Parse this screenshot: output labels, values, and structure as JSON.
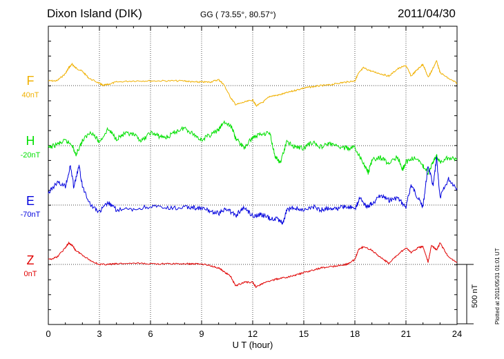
{
  "header": {
    "station": "Dixon Island (DIK)",
    "coords": "GG ( 73.55°,  80.57°)",
    "date": "2011/04/30"
  },
  "footer_note": "Plotted at 2011/05/31 01:01 UT",
  "scale_bar_label": "500 nT",
  "colors": {
    "F": "#f0b000",
    "H": "#00e000",
    "E": "#0000dd",
    "Z": "#e00000",
    "grid": "#000000"
  },
  "chart_data": {
    "type": "line",
    "xlabel": "U T (hour)",
    "xlim": [
      0,
      24
    ],
    "xticks": [
      0,
      3,
      6,
      9,
      12,
      15,
      18,
      21,
      24
    ],
    "series": [
      {
        "name": "F",
        "offset_label": "40nT",
        "x": [
          0,
          0.5,
          1,
          1.2,
          1.4,
          1.6,
          2,
          2.4,
          3,
          3.2,
          3.5,
          4,
          5,
          6,
          7,
          8,
          8.5,
          9,
          9.5,
          10,
          10.3,
          10.7,
          11,
          11.5,
          12,
          12.2,
          12.6,
          13,
          13.5,
          14,
          14.5,
          15,
          15.5,
          16,
          16.5,
          17,
          17.5,
          18,
          18.2,
          18.5,
          19,
          19.5,
          20,
          20.5,
          21,
          21.3,
          21.7,
          22,
          22.3,
          22.5,
          22.8,
          23,
          23.5,
          24
        ],
        "y": [
          40,
          40,
          100,
          150,
          180,
          150,
          120,
          60,
          20,
          0,
          10,
          30,
          40,
          40,
          40,
          40,
          30,
          30,
          30,
          50,
          10,
          -100,
          -160,
          -140,
          -120,
          -170,
          -140,
          -90,
          -80,
          -60,
          -40,
          -20,
          -10,
          0,
          5,
          20,
          30,
          40,
          100,
          150,
          120,
          100,
          80,
          140,
          170,
          80,
          140,
          180,
          70,
          120,
          210,
          110,
          60,
          20
        ]
      },
      {
        "name": "H",
        "offset_label": "-20nT",
        "x": [
          0,
          0.5,
          1,
          1.4,
          1.6,
          2,
          2.5,
          3,
          3.5,
          4,
          4.5,
          5,
          5.5,
          6,
          6.5,
          7,
          7.5,
          8,
          8.5,
          9,
          9.5,
          10,
          10.3,
          10.8,
          11,
          11.5,
          12,
          12.5,
          13,
          13.3,
          13.6,
          14,
          14.5,
          15,
          15.5,
          16,
          16.5,
          17,
          17.5,
          18,
          18.5,
          18.8,
          19,
          19.5,
          20,
          20.5,
          20.8,
          21,
          21.5,
          22,
          22.3,
          22.6,
          22.8,
          23,
          23.5,
          24
        ],
        "y": [
          -20,
          10,
          40,
          10,
          -80,
          40,
          120,
          30,
          140,
          60,
          100,
          90,
          40,
          110,
          80,
          70,
          120,
          150,
          100,
          50,
          90,
          130,
          200,
          150,
          60,
          -20,
          70,
          100,
          110,
          -80,
          -150,
          30,
          -10,
          -20,
          30,
          -10,
          20,
          -10,
          -20,
          -20,
          -150,
          -230,
          -120,
          -100,
          -150,
          -90,
          -200,
          -140,
          -100,
          -170,
          -230,
          -130,
          -90,
          -140,
          -100,
          -120
        ]
      },
      {
        "name": "E",
        "offset_label": "-70nT",
        "x": [
          0,
          0.5,
          1,
          1.3,
          1.5,
          1.8,
          2,
          2.5,
          3,
          3.5,
          4,
          5,
          6,
          7,
          8,
          8.5,
          9,
          9.5,
          10,
          10.5,
          11,
          11.5,
          12,
          12.5,
          13,
          13.5,
          13.8,
          14,
          14.5,
          15,
          15.5,
          16,
          16.5,
          17,
          17.5,
          18,
          18.3,
          18.7,
          19,
          19.5,
          20,
          20.5,
          21,
          21.3,
          21.7,
          22,
          22.3,
          22.6,
          22.8,
          23,
          23.5,
          24
        ],
        "y": [
          100,
          190,
          160,
          330,
          150,
          330,
          160,
          0,
          -60,
          20,
          -40,
          -40,
          -10,
          -30,
          -20,
          -20,
          -30,
          -50,
          -70,
          -30,
          -90,
          -20,
          -90,
          -80,
          -110,
          -120,
          -150,
          -40,
          -20,
          -50,
          -10,
          -40,
          -20,
          -30,
          -10,
          -30,
          60,
          -10,
          10,
          80,
          40,
          60,
          -20,
          170,
          60,
          -10,
          330,
          160,
          400,
          60,
          220,
          140
        ]
      },
      {
        "name": "Z",
        "offset_label": "0nT",
        "x": [
          0,
          0.5,
          1,
          1.2,
          1.4,
          1.6,
          2,
          2.5,
          3,
          3.5,
          4,
          5,
          6,
          7,
          8,
          8.5,
          9,
          9.5,
          10,
          10.3,
          10.7,
          11,
          11.5,
          12,
          12.2,
          12.6,
          13,
          13.5,
          14,
          14.5,
          15,
          15.5,
          16,
          16.5,
          17,
          17.5,
          18,
          18.2,
          18.5,
          19,
          19.5,
          20,
          20.5,
          21,
          21.3,
          21.7,
          22,
          22.3,
          22.5,
          22.8,
          23,
          23.5,
          24
        ],
        "y": [
          40,
          60,
          140,
          180,
          160,
          120,
          80,
          30,
          0,
          0,
          5,
          10,
          5,
          5,
          5,
          5,
          5,
          -10,
          -30,
          -60,
          -100,
          -180,
          -150,
          -150,
          -190,
          -160,
          -140,
          -120,
          -110,
          -90,
          -70,
          -50,
          -30,
          -20,
          -10,
          0,
          40,
          120,
          150,
          120,
          60,
          10,
          80,
          140,
          100,
          140,
          150,
          20,
          160,
          120,
          180,
          60,
          20
        ]
      }
    ]
  }
}
